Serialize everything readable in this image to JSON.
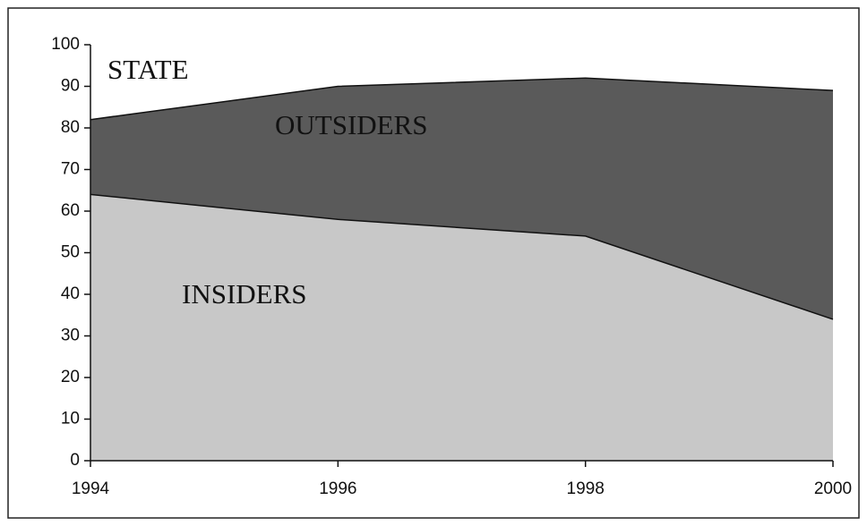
{
  "chart_data": {
    "type": "stacked-area",
    "x": [
      1994,
      1996,
      1998,
      2000
    ],
    "series": [
      {
        "name": "INSIDERS",
        "color": "#c8c8c8",
        "values": [
          64,
          58,
          54,
          34
        ]
      },
      {
        "name": "OUTSIDERS",
        "color": "#5a5a5a",
        "values": [
          18,
          32,
          38,
          55
        ]
      }
    ],
    "annotations": [
      "STATE"
    ],
    "xlim": [
      1994,
      2000
    ],
    "xticks": [
      1994,
      1996,
      1998,
      2000
    ],
    "ylim": [
      0,
      100
    ],
    "yticks": [
      0,
      10,
      20,
      30,
      40,
      50,
      60,
      70,
      80,
      90,
      100
    ]
  }
}
